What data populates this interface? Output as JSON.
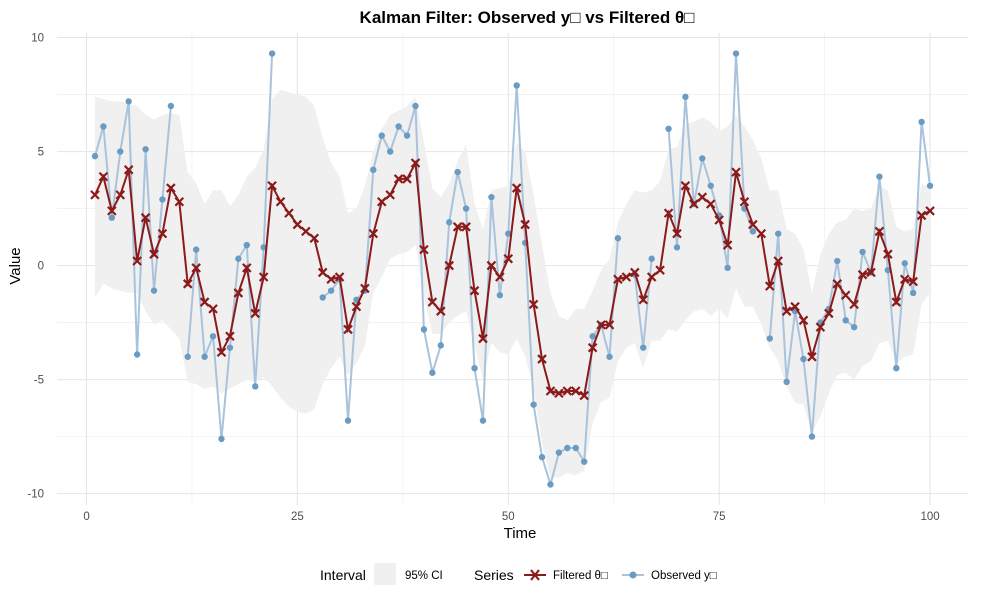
{
  "chart_data": {
    "type": "line",
    "title": "Kalman Filter: Observed y□ vs Filtered θ□",
    "xlabel": "Time",
    "ylabel": "Value",
    "xlim": [
      -3.5,
      104.5
    ],
    "ylim": [
      -10.5,
      10.2
    ],
    "x_ticks": [
      0,
      25,
      50,
      75,
      100
    ],
    "y_ticks": [
      -10,
      -5,
      0,
      5,
      10
    ],
    "grid": true,
    "legend_position": "bottom",
    "legend": {
      "interval_title": "Interval",
      "interval_label": "95% CI",
      "series_title": "Series",
      "entries": [
        {
          "label": "Filtered θ□",
          "color": "#8b1a1a",
          "marker": "x"
        },
        {
          "label": "Observed y□",
          "color": "#6a9bc3",
          "marker": "circle"
        }
      ]
    },
    "colors": {
      "filtered": "#8b1a1a",
      "observed_line": "#a8c3db",
      "observed_point": "#6a9bc3",
      "ci_band": "#f0f0f0"
    },
    "x": [
      1,
      2,
      3,
      4,
      5,
      6,
      7,
      8,
      9,
      10,
      11,
      12,
      13,
      14,
      15,
      16,
      17,
      18,
      19,
      20,
      21,
      22,
      23,
      24,
      25,
      26,
      27,
      28,
      29,
      30,
      31,
      32,
      33,
      34,
      35,
      36,
      37,
      38,
      39,
      40,
      41,
      42,
      43,
      44,
      45,
      46,
      47,
      48,
      49,
      50,
      51,
      52,
      53,
      54,
      55,
      56,
      57,
      58,
      59,
      60,
      61,
      62,
      63,
      64,
      65,
      66,
      67,
      68,
      69,
      70,
      71,
      72,
      73,
      74,
      75,
      76,
      77,
      78,
      79,
      80,
      81,
      82,
      83,
      84,
      85,
      86,
      87,
      88,
      89,
      90,
      91,
      92,
      93,
      94,
      95,
      96,
      97,
      98,
      99,
      100
    ],
    "series": [
      {
        "name": "Observed y□",
        "values": [
          4.8,
          6.1,
          2.1,
          5.0,
          7.2,
          -3.9,
          5.1,
          -1.1,
          2.9,
          7.0,
          null,
          -4.0,
          0.7,
          -4.0,
          -3.1,
          -7.6,
          -3.6,
          0.3,
          0.9,
          -5.3,
          0.8,
          9.3,
          null,
          null,
          null,
          null,
          null,
          -1.4,
          -1.1,
          -0.6,
          -6.8,
          -1.5,
          -1.1,
          4.2,
          5.7,
          5.0,
          6.1,
          5.7,
          7.0,
          -2.8,
          -4.7,
          -3.5,
          1.9,
          4.1,
          2.5,
          -4.5,
          -6.8,
          3.0,
          -1.3,
          1.4,
          7.9,
          1.0,
          -6.1,
          -8.4,
          -9.6,
          -8.2,
          -8.0,
          -8.0,
          -8.6,
          -3.1,
          -2.6,
          -4.0,
          1.2,
          null,
          -0.4,
          -3.6,
          0.3,
          null,
          6.0,
          0.8,
          7.4,
          2.7,
          4.7,
          3.5,
          2.2,
          -0.1,
          9.3,
          2.5,
          1.5,
          null,
          -3.2,
          1.4,
          -5.1,
          -2.0,
          -4.1,
          -7.5,
          -2.5,
          -1.9,
          0.2,
          -2.4,
          -2.7,
          0.6,
          -0.3,
          3.9,
          -0.2,
          -4.5,
          0.1,
          -1.2,
          6.3,
          3.5
        ]
      },
      {
        "name": "Filtered θ□",
        "values": [
          3.1,
          3.9,
          2.4,
          3.1,
          4.2,
          0.2,
          2.1,
          0.5,
          1.4,
          3.4,
          2.8,
          -0.8,
          -0.1,
          -1.6,
          -1.9,
          -3.8,
          -3.1,
          -1.2,
          -0.1,
          -2.1,
          -0.5,
          3.5,
          2.8,
          2.3,
          1.8,
          1.5,
          1.2,
          -0.3,
          -0.6,
          -0.5,
          -2.8,
          -1.8,
          -1.0,
          1.4,
          2.8,
          3.1,
          3.8,
          3.8,
          4.5,
          0.7,
          -1.6,
          -2.0,
          0.0,
          1.7,
          1.7,
          -1.1,
          -3.2,
          0.0,
          -0.5,
          0.3,
          3.4,
          1.8,
          -1.7,
          -4.1,
          -5.5,
          -5.6,
          -5.5,
          -5.5,
          -5.7,
          -3.6,
          -2.6,
          -2.6,
          -0.6,
          -0.5,
          -0.3,
          -1.5,
          -0.5,
          -0.2,
          2.3,
          1.4,
          3.5,
          2.7,
          3.0,
          2.7,
          2.0,
          0.9,
          4.1,
          2.8,
          1.8,
          1.4,
          -0.9,
          0.2,
          -2.0,
          -1.8,
          -2.4,
          -4.0,
          -2.7,
          -2.1,
          -0.8,
          -1.3,
          -1.7,
          -0.4,
          -0.3,
          1.5,
          0.5,
          -1.6,
          -0.6,
          -0.7,
          2.2,
          2.4
        ]
      }
    ],
    "ci_lower": [
      -1.4,
      -0.8,
      -1.0,
      -1.1,
      -1.2,
      -1.2,
      -2.0,
      -2.6,
      -2.4,
      -2.8,
      -3.2,
      -5.1,
      -5.2,
      -5.4,
      -5.3,
      -5.6,
      -5.4,
      -5.2,
      -5.0,
      -5.1,
      -4.9,
      -5.3,
      -5.8,
      -6.2,
      -6.4,
      -6.5,
      -6.3,
      -5.2,
      -4.5,
      -4.0,
      -4.8,
      -4.3,
      -3.5,
      -1.2,
      -0.5,
      0.3,
      0.5,
      0.6,
      0.9,
      -1.4,
      -3.0,
      -3.0,
      -2.5,
      -2.2,
      -2.0,
      -3.5,
      -5.0,
      -3.4,
      -3.8,
      -3.9,
      -3.2,
      -4.0,
      -5.4,
      -7.8,
      -9.3,
      -9.3,
      -9.1,
      -9.2,
      -9.0,
      -6.9,
      -6.0,
      -5.8,
      -4.2,
      -3.6,
      -3.4,
      -4.5,
      -3.3,
      -3.3,
      -2.8,
      -2.9,
      -2.4,
      -2.0,
      -1.9,
      -2.2,
      -1.9,
      -2.3,
      -1.0,
      -1.8,
      -1.8,
      -2.6,
      -3.6,
      -4.2,
      -5.3,
      -6.0,
      -6.1,
      -7.3,
      -6.6,
      -5.6,
      -4.8,
      -4.7,
      -5.0,
      -4.4,
      -4.2,
      -3.4,
      -3.3,
      -4.3,
      -4.0,
      -3.9,
      -1.7,
      -1.2
    ],
    "ci_upper": [
      7.4,
      7.3,
      7.2,
      7.2,
      7.1,
      7.0,
      6.6,
      6.4,
      6.6,
      6.7,
      6.6,
      4.1,
      3.6,
      2.7,
      3.3,
      3.3,
      2.6,
      3.1,
      3.9,
      4.3,
      5.1,
      7.3,
      7.7,
      7.6,
      7.5,
      7.4,
      7.0,
      5.6,
      4.5,
      3.9,
      2.3,
      2.5,
      3.5,
      5.0,
      6.0,
      6.6,
      6.8,
      7.0,
      7.4,
      5.4,
      3.4,
      3.0,
      3.6,
      4.6,
      5.3,
      2.7,
      1.6,
      3.3,
      3.4,
      3.5,
      5.4,
      5.0,
      3.1,
      0.9,
      -1.2,
      -2.2,
      -2.4,
      -1.9,
      -1.9,
      -1.1,
      -0.2,
      0.3,
      1.9,
      2.7,
      3.3,
      3.2,
      3.3,
      3.7,
      5.1,
      5.2,
      6.2,
      6.3,
      6.5,
      6.3,
      5.9,
      6.1,
      6.6,
      6.1,
      5.5,
      4.7,
      3.3,
      3.3,
      1.6,
      1.4,
      0.7,
      -1.2,
      0.5,
      1.4,
      1.9,
      2.0,
      2.5,
      2.4,
      2.5,
      3.5,
      3.3,
      1.7,
      1.5,
      1.6,
      3.6,
      3.4
    ]
  }
}
